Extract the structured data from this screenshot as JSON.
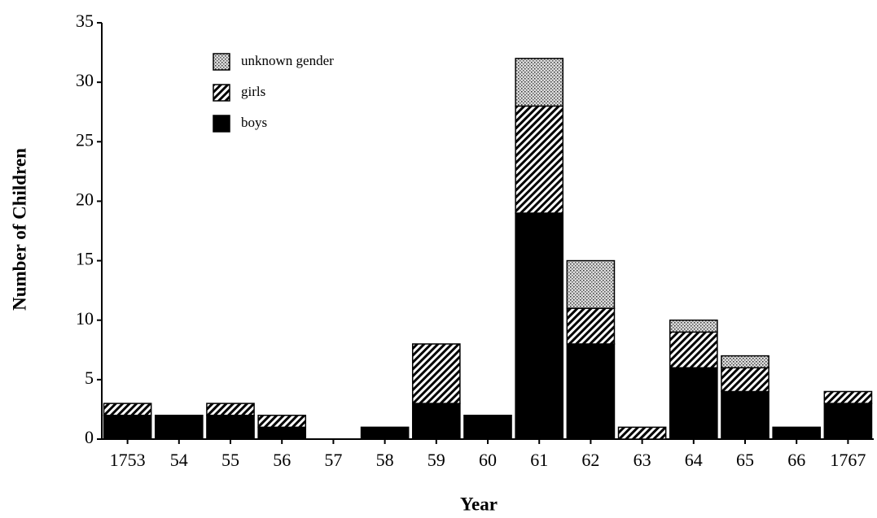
{
  "chart_data": {
    "type": "stacked_bar",
    "xlabel": "Year",
    "ylabel": "Number of Children",
    "categories": [
      "1753",
      "54",
      "55",
      "56",
      "57",
      "58",
      "59",
      "60",
      "61",
      "62",
      "63",
      "64",
      "65",
      "66",
      "1767"
    ],
    "series": [
      {
        "name": "boys",
        "color": "#000000",
        "fill": "solid",
        "values": [
          2,
          2,
          2,
          1,
          0,
          1,
          3,
          2,
          19,
          8,
          0,
          6,
          4,
          1,
          3
        ]
      },
      {
        "name": "girls",
        "color": "#000000",
        "fill": "hatch",
        "values": [
          1,
          0,
          1,
          1,
          0,
          0,
          5,
          0,
          9,
          3,
          1,
          3,
          2,
          0,
          1
        ]
      },
      {
        "name": "unknown gender",
        "color": "#000000",
        "fill": "dots",
        "values": [
          0,
          0,
          0,
          0,
          0,
          0,
          0,
          0,
          4,
          4,
          0,
          1,
          1,
          0,
          0
        ]
      }
    ],
    "ylim": [
      0,
      35
    ],
    "yticks": [
      0,
      5,
      10,
      15,
      20,
      25,
      30,
      35
    ],
    "legend": "upper left"
  }
}
